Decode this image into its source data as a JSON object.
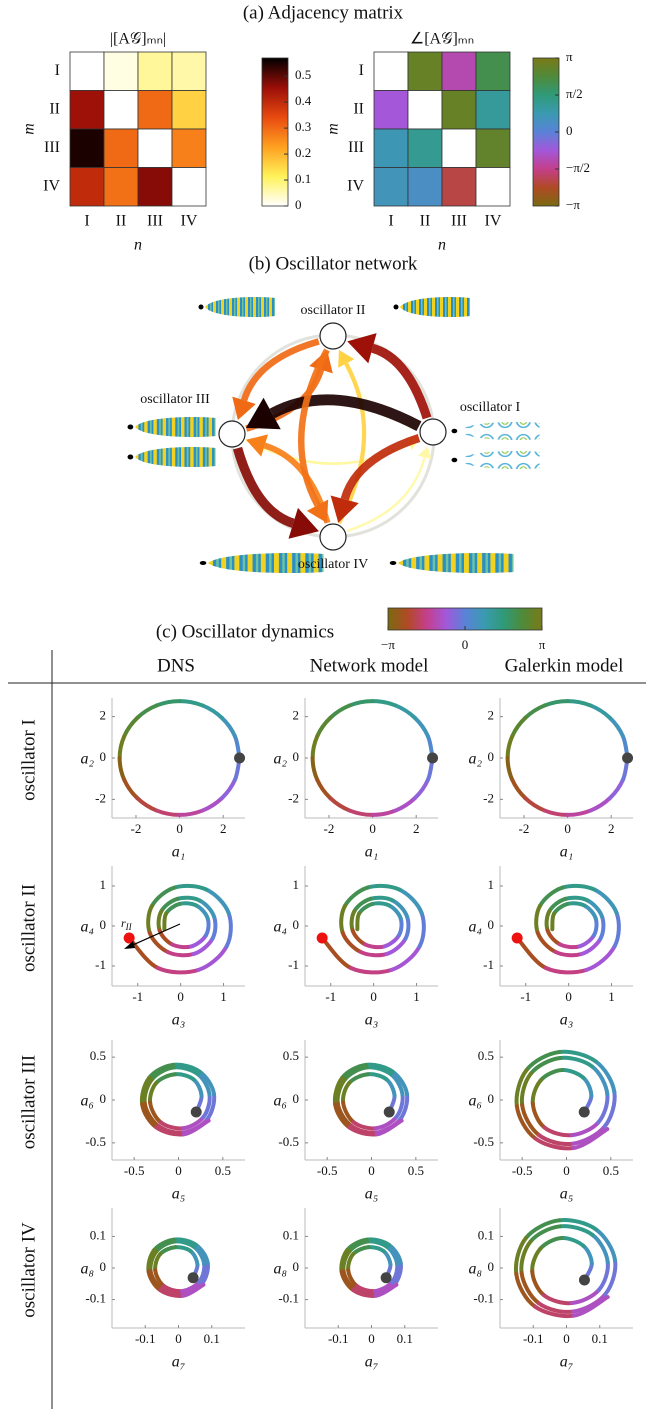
{
  "panel_a": {
    "title": "(a) Adjacency matrix",
    "magnitude": {
      "type": "heatmap",
      "title": "|[A𝒢]ₘₙ|",
      "row_labels": [
        "I",
        "II",
        "III",
        "IV"
      ],
      "col_labels": [
        "I",
        "II",
        "III",
        "IV"
      ],
      "ylabel": "m",
      "xlabel": "n",
      "values": [
        [
          null,
          0.02,
          0.07,
          0.06
        ],
        [
          0.45,
          null,
          0.3,
          0.16
        ],
        [
          0.55,
          0.3,
          null,
          0.27
        ],
        [
          0.4,
          0.29,
          0.47,
          null
        ]
      ],
      "zlim": [
        0,
        0.57
      ],
      "zticks": [
        0,
        0.1,
        0.2,
        0.3,
        0.4,
        0.5
      ],
      "colormap": [
        "#ffffff",
        "#fff25a",
        "#ffa020",
        "#e84a10",
        "#9a0e08",
        "#000000"
      ]
    },
    "phase": {
      "type": "heatmap",
      "title": "∠[A𝒢]ₘₙ",
      "row_labels": [
        "I",
        "II",
        "III",
        "IV"
      ],
      "col_labels": [
        "I",
        "II",
        "III",
        "IV"
      ],
      "ylabel": "m",
      "xlabel": "n",
      "values": [
        [
          null,
          2.8,
          -1.2,
          2.1
        ],
        [
          -0.8,
          null,
          2.8,
          1.1
        ],
        [
          0.7,
          1.2,
          null,
          2.7
        ],
        [
          0.6,
          0.4,
          -2.1,
          null
        ]
      ],
      "zlim": [
        -3.1416,
        3.1416
      ],
      "zticks": [
        {
          "value": 3.1416,
          "label": "π"
        },
        {
          "value": 1.5708,
          "label": "π/2"
        },
        0,
        {
          "value": -1.5708,
          "label": "−π/2"
        },
        {
          "value": -3.1416,
          "label": "−π"
        }
      ],
      "colormap": [
        "#7a6a12",
        "#b04a24",
        "#c43f8a",
        "#a357d9",
        "#5a82d8",
        "#3a9ab0",
        "#2f9a78",
        "#4f8a3a",
        "#7a7a18"
      ]
    }
  },
  "panel_b": {
    "title": "(b) Oscillator network",
    "nodes": [
      "oscillator I",
      "oscillator II",
      "oscillator III",
      "oscillator IV"
    ]
  },
  "panel_c": {
    "title": "(c) Oscillator dynamics",
    "colorbar_lim": [
      -3.1416,
      3.1416
    ],
    "colorbar_ticks": [
      {
        "value": -3.1416,
        "label": "−π"
      },
      0,
      {
        "value": 3.1416,
        "label": "π"
      }
    ],
    "colormap": [
      "#7a6a12",
      "#b04a24",
      "#c43f8a",
      "#a357d9",
      "#5a82d8",
      "#3a9ab0",
      "#2f9a78",
      "#4f8a3a",
      "#7a7a18"
    ],
    "columns": [
      "DNS",
      "Network model",
      "Galerkin model"
    ],
    "annotation": {
      "symbol": "r",
      "subscript": "II"
    },
    "rows": [
      {
        "label": "oscillator I",
        "xlabel": "a₁",
        "ylabel": "a₂",
        "xlim": [
          -3.1,
          3.0
        ],
        "ylim": [
          -2.9,
          2.9
        ],
        "xticks": [
          -2,
          0,
          2
        ],
        "yticks": [
          -2,
          0,
          2
        ],
        "marker_color": "#444444",
        "panels": [
          {
            "x": [
              2.75,
              2.54,
              1.94,
              1.05,
              0,
              -1.05,
              -1.94,
              -2.54,
              -2.75,
              -2.54,
              -1.94,
              -1.05,
              0,
              1.05,
              1.94,
              2.54,
              2.75
            ],
            "y": [
              0,
              1.05,
              1.94,
              2.54,
              2.75,
              2.54,
              1.94,
              1.05,
              0,
              -1.05,
              -1.94,
              -2.54,
              -2.75,
              -2.54,
              -1.94,
              -1.05,
              0
            ]
          },
          {
            "x": [
              2.75,
              2.54,
              1.94,
              1.05,
              0,
              -1.05,
              -1.94,
              -2.54,
              -2.75,
              -2.54,
              -1.94,
              -1.05,
              0,
              1.05,
              1.94,
              2.54,
              2.75
            ],
            "y": [
              0,
              1.05,
              1.94,
              2.54,
              2.75,
              2.54,
              1.94,
              1.05,
              0,
              -1.05,
              -1.94,
              -2.54,
              -2.75,
              -2.54,
              -1.94,
              -1.05,
              0
            ]
          },
          {
            "x": [
              2.75,
              2.54,
              1.94,
              1.05,
              0,
              -1.05,
              -1.94,
              -2.54,
              -2.75,
              -2.54,
              -1.94,
              -1.05,
              0,
              1.05,
              1.94,
              2.54,
              2.75
            ],
            "y": [
              0,
              1.05,
              1.94,
              2.54,
              2.75,
              2.54,
              1.94,
              1.05,
              0,
              -1.05,
              -1.94,
              -2.54,
              -2.75,
              -2.54,
              -1.94,
              -1.05,
              0
            ]
          }
        ]
      },
      {
        "label": "oscillator II",
        "xlabel": "a₃",
        "ylabel": "a₄",
        "xlim": [
          -1.6,
          1.5
        ],
        "ylim": [
          -1.5,
          1.5
        ],
        "xticks": [
          -1,
          0,
          1
        ],
        "yticks": [
          -1,
          0,
          1
        ],
        "marker_color": "#ee1111",
        "panels": [
          {
            "x": [
              -1.2,
              -0.53,
              0.41,
              1.07,
              1.12,
              0.6,
              -0.14,
              -0.67,
              -0.72,
              -0.3,
              0.3,
              0.74,
              0.78,
              0.44,
              -0.07,
              -0.45,
              -0.49,
              -0.2,
              0.25,
              0.59,
              0.63,
              0.37,
              -0.03,
              -0.34,
              -0.38
            ],
            "y": [
              -0.3,
              -1.05,
              -1.1,
              -0.51,
              0.32,
              0.91,
              0.96,
              0.5,
              -0.17,
              -0.65,
              -0.7,
              -0.32,
              0.23,
              0.64,
              0.68,
              0.37,
              -0.11,
              -0.46,
              -0.51,
              -0.23,
              0.19,
              0.51,
              0.55,
              0.31,
              -0.08
            ]
          },
          {
            "x": [
              -1.2,
              -0.53,
              0.41,
              1.07,
              1.12,
              0.6,
              -0.14,
              -0.67,
              -0.72,
              -0.3,
              0.3,
              0.74,
              0.78,
              0.44,
              -0.07,
              -0.45,
              -0.49,
              -0.2,
              0.25,
              0.59,
              0.63,
              0.37,
              -0.03,
              -0.34,
              -0.38
            ],
            "y": [
              -0.3,
              -1.05,
              -1.1,
              -0.51,
              0.32,
              0.91,
              0.96,
              0.5,
              -0.17,
              -0.65,
              -0.7,
              -0.32,
              0.23,
              0.64,
              0.68,
              0.37,
              -0.11,
              -0.46,
              -0.51,
              -0.23,
              0.19,
              0.51,
              0.55,
              0.31,
              -0.08
            ]
          },
          {
            "x": [
              -1.2,
              -0.53,
              0.41,
              1.07,
              1.12,
              0.6,
              -0.14,
              -0.67,
              -0.72,
              -0.3,
              0.3,
              0.74,
              0.78,
              0.44,
              -0.07,
              -0.45,
              -0.49,
              -0.2,
              0.25,
              0.59,
              0.63,
              0.37,
              -0.03,
              -0.34,
              -0.38
            ],
            "y": [
              -0.3,
              -1.05,
              -1.1,
              -0.51,
              0.32,
              0.91,
              0.96,
              0.5,
              -0.17,
              -0.65,
              -0.7,
              -0.32,
              0.23,
              0.64,
              0.68,
              0.37,
              -0.11,
              -0.46,
              -0.51,
              -0.23,
              0.19,
              0.51,
              0.55,
              0.31,
              -0.08
            ]
          }
        ]
      },
      {
        "label": "oscillator III",
        "xlabel": "a₅",
        "ylabel": "a₆",
        "xlim": [
          -0.75,
          0.75
        ],
        "ylim": [
          -0.7,
          0.7
        ],
        "xticks": [
          -0.5,
          0,
          0.5
        ],
        "yticks": [
          -0.5,
          0,
          0.5
        ],
        "marker_color": "#444444",
        "panels": [
          {
            "x": [
              0.2,
              0.26,
              0.17,
              -0.04,
              -0.25,
              -0.32,
              -0.2,
              0.05,
              0.28,
              0.35,
              0.22,
              -0.05,
              -0.3,
              -0.38,
              -0.23,
              0.05,
              0.32,
              0.4,
              0.24,
              -0.06,
              -0.33,
              -0.41,
              -0.25,
              0.06,
              0.34
            ],
            "y": [
              -0.14,
              0.05,
              0.24,
              0.3,
              0.2,
              -0.03,
              -0.26,
              -0.33,
              -0.2,
              0.06,
              0.3,
              0.38,
              0.24,
              -0.04,
              -0.3,
              -0.38,
              -0.23,
              0.07,
              0.33,
              0.41,
              0.26,
              -0.05,
              -0.32,
              -0.4,
              -0.24
            ]
          },
          {
            "x": [
              0.2,
              0.26,
              0.17,
              -0.04,
              -0.25,
              -0.32,
              -0.2,
              0.05,
              0.28,
              0.35,
              0.22,
              -0.05,
              -0.3,
              -0.38,
              -0.23,
              0.05,
              0.32,
              0.4,
              0.24,
              -0.06,
              -0.33,
              -0.41,
              -0.25,
              0.06,
              0.34
            ],
            "y": [
              -0.14,
              0.05,
              0.24,
              0.3,
              0.2,
              -0.03,
              -0.26,
              -0.33,
              -0.2,
              0.06,
              0.3,
              0.38,
              0.24,
              -0.04,
              -0.3,
              -0.38,
              -0.23,
              0.07,
              0.33,
              0.41,
              0.26,
              -0.05,
              -0.32,
              -0.4,
              -0.24
            ]
          },
          {
            "x": [
              0.2,
              0.28,
              0.19,
              -0.05,
              -0.29,
              -0.38,
              -0.25,
              0.06,
              0.36,
              0.46,
              0.29,
              -0.07,
              -0.4,
              -0.5,
              -0.31,
              0.07,
              0.43,
              0.54,
              0.33,
              -0.08,
              -0.45,
              -0.56,
              -0.35,
              0.08,
              0.46
            ],
            "y": [
              -0.14,
              0.05,
              0.26,
              0.35,
              0.23,
              -0.04,
              -0.32,
              -0.41,
              -0.26,
              0.07,
              0.39,
              0.49,
              0.31,
              -0.06,
              -0.41,
              -0.51,
              -0.31,
              0.09,
              0.45,
              0.56,
              0.35,
              -0.07,
              -0.45,
              -0.56,
              -0.34
            ]
          }
        ]
      },
      {
        "label": "oscillator IV",
        "xlabel": "a₇",
        "ylabel": "a₈",
        "xlim": [
          -0.2,
          0.2
        ],
        "ylim": [
          -0.19,
          0.19
        ],
        "xticks": [
          -0.1,
          0,
          0.1
        ],
        "yticks": [
          -0.1,
          0,
          0.1
        ],
        "marker_color": "#444444",
        "panels": [
          {
            "x": [
              0.044,
              0.057,
              0.037,
              -0.009,
              -0.055,
              -0.07,
              -0.044,
              0.011,
              0.062,
              0.077,
              0.048,
              -0.011,
              -0.066,
              -0.084,
              -0.051,
              0.011,
              0.07,
              0.088,
              0.053,
              -0.013,
              -0.073,
              -0.09,
              -0.055,
              0.013,
              0.075
            ],
            "y": [
              -0.031,
              0.011,
              0.053,
              0.066,
              0.044,
              -0.007,
              -0.057,
              -0.073,
              -0.044,
              0.013,
              0.066,
              0.084,
              0.053,
              -0.009,
              -0.066,
              -0.084,
              -0.051,
              0.015,
              0.073,
              0.09,
              0.057,
              -0.011,
              -0.07,
              -0.088,
              -0.053
            ]
          },
          {
            "x": [
              0.044,
              0.057,
              0.037,
              -0.009,
              -0.055,
              -0.07,
              -0.044,
              0.011,
              0.062,
              0.077,
              0.048,
              -0.011,
              -0.066,
              -0.084,
              -0.051,
              0.011,
              0.07,
              0.088,
              0.053,
              -0.013,
              -0.073,
              -0.09,
              -0.055,
              0.013,
              0.075
            ],
            "y": [
              -0.031,
              0.011,
              0.053,
              0.066,
              0.044,
              -0.007,
              -0.057,
              -0.073,
              -0.044,
              0.013,
              0.066,
              0.084,
              0.053,
              -0.009,
              -0.066,
              -0.084,
              -0.051,
              0.015,
              0.073,
              0.09,
              0.057,
              -0.011,
              -0.07,
              -0.088,
              -0.053
            ]
          },
          {
            "x": [
              0.054,
              0.076,
              0.051,
              -0.014,
              -0.078,
              -0.103,
              -0.068,
              0.016,
              0.097,
              0.124,
              0.078,
              -0.019,
              -0.108,
              -0.135,
              -0.084,
              0.019,
              0.116,
              0.146,
              0.089,
              -0.022,
              -0.122,
              -0.151,
              -0.095,
              0.022,
              0.124
            ],
            "y": [
              -0.038,
              0.014,
              0.07,
              0.095,
              0.062,
              -0.011,
              -0.086,
              -0.111,
              -0.07,
              0.019,
              0.105,
              0.132,
              0.084,
              -0.016,
              -0.111,
              -0.138,
              -0.084,
              0.024,
              0.122,
              0.151,
              0.095,
              -0.019,
              -0.122,
              -0.151,
              -0.092
            ]
          }
        ]
      }
    ]
  }
}
